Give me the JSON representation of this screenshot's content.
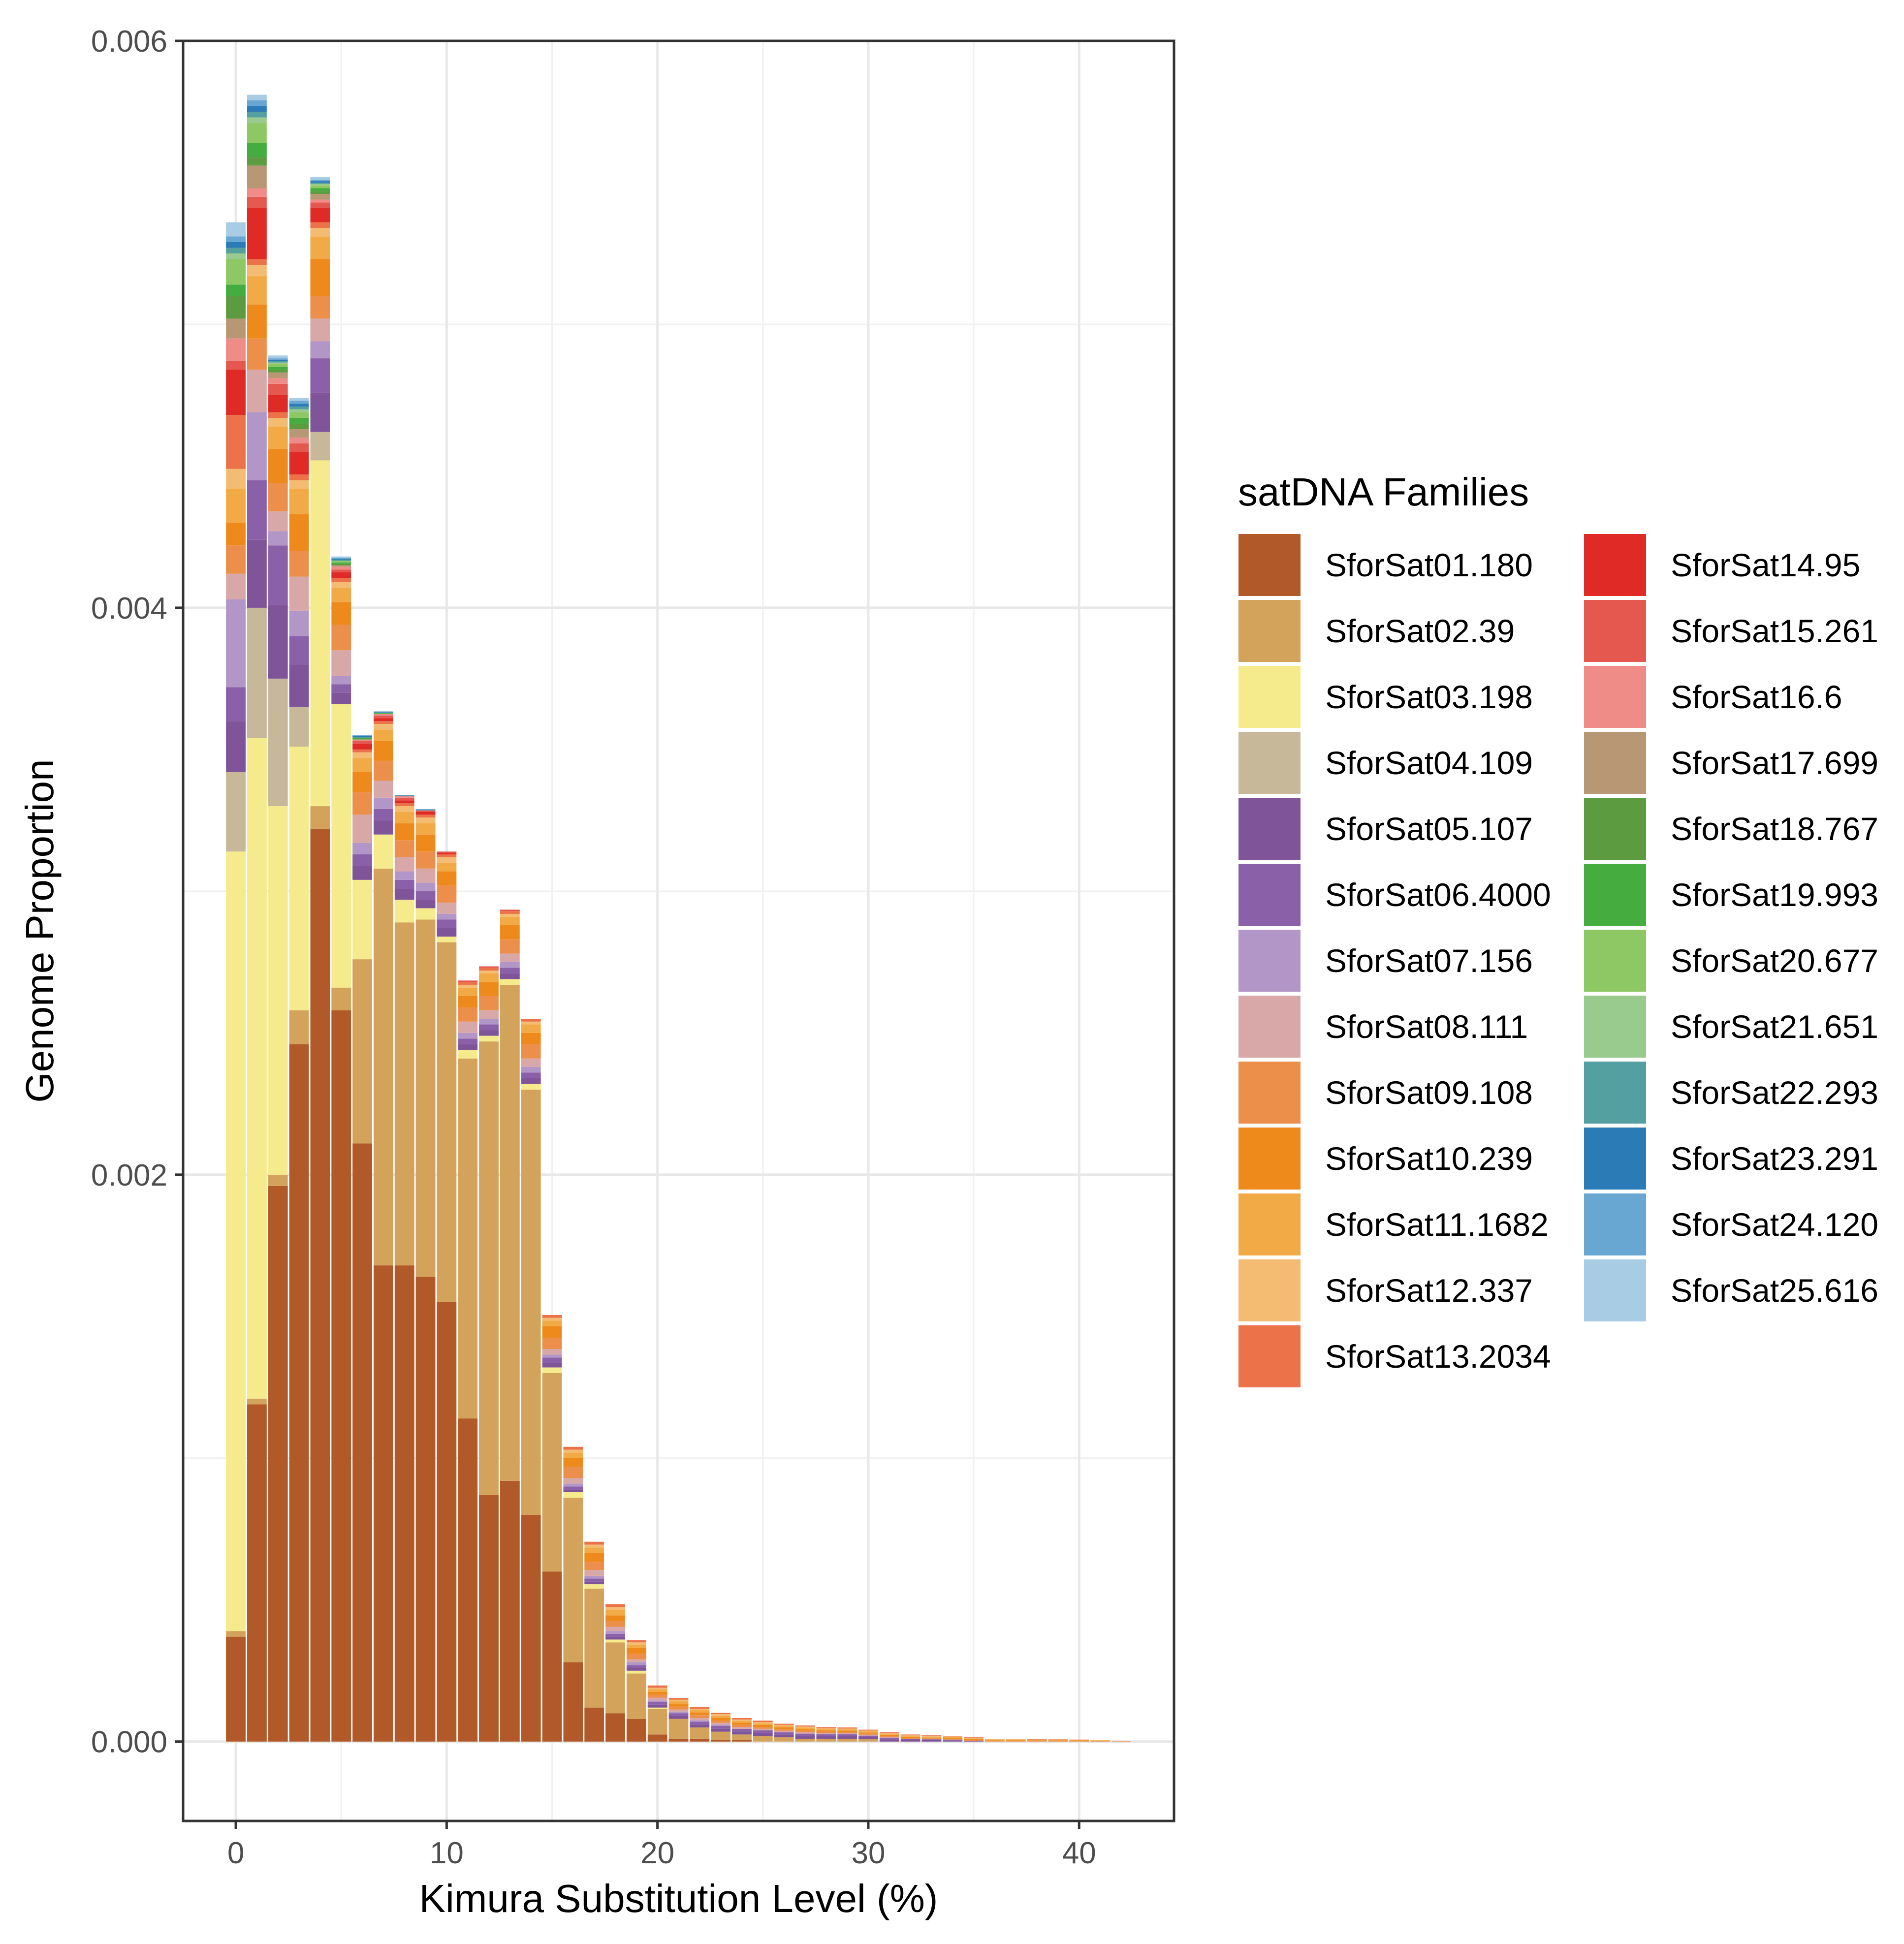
{
  "chart_data": {
    "type": "bar",
    "stacked": true,
    "title": "",
    "xlabel": "Kimura Substitution Level (%)",
    "ylabel": "Genome Proportion",
    "x_ticks": [
      "0",
      "10",
      "20",
      "30",
      "40"
    ],
    "y_ticks": [
      "0.000",
      "0.002",
      "0.004",
      "0.006"
    ],
    "xlim": [
      -2.5,
      44.5
    ],
    "ylim": [
      -0.00028,
      0.006
    ],
    "grid": true,
    "legend_title": "satDNA Families",
    "legend_position": "right",
    "x": [
      0,
      1,
      2,
      3,
      4,
      5,
      6,
      7,
      8,
      9,
      10,
      11,
      12,
      13,
      14,
      15,
      16,
      17,
      18,
      19,
      20,
      21,
      22,
      23,
      24,
      25,
      26,
      27,
      28,
      29,
      30,
      31,
      32,
      33,
      34,
      35,
      36,
      37,
      38,
      39,
      40,
      41,
      42
    ],
    "series": [
      {
        "name": "SforSat01.180",
        "color": "#b15928",
        "values": [
          0.00037,
          0.00119,
          0.00196,
          0.00246,
          0.00322,
          0.00258,
          0.00211,
          0.00168,
          0.00168,
          0.00164,
          0.00155,
          0.00114,
          0.00087,
          0.00092,
          0.0008,
          0.0006,
          0.00028,
          0.00012,
          0.0001,
          8e-05,
          2.5e-05,
          1e-05,
          1e-05,
          5e-06,
          5e-06,
          0,
          0,
          0,
          0,
          0,
          0,
          0,
          0,
          0,
          0,
          0,
          0,
          0,
          0,
          0,
          0,
          0,
          0
        ]
      },
      {
        "name": "SforSat02.39",
        "color": "#d4a35b",
        "values": [
          2e-05,
          2e-05,
          4e-05,
          0.00012,
          8e-05,
          8e-05,
          0.00065,
          0.0014,
          0.00121,
          0.00126,
          0.00127,
          0.00127,
          0.0016,
          0.00175,
          0.0015,
          0.0007,
          0.00058,
          0.00042,
          0.00025,
          0.00016,
          9e-05,
          7e-05,
          4e-05,
          3e-05,
          2e-05,
          2e-05,
          1.5e-05,
          1e-05,
          1e-05,
          1e-05,
          8e-06,
          0,
          0,
          0,
          0,
          0,
          0,
          0,
          0,
          0,
          0,
          0,
          0
        ]
      },
      {
        "name": "SforSat03.198",
        "color": "#f5eb8c",
        "values": [
          0.00275,
          0.00233,
          0.0013,
          0.00093,
          0.00122,
          0.001,
          0.00028,
          0.00012,
          8e-05,
          4e-05,
          2e-05,
          3e-05,
          2e-05,
          2e-05,
          2e-05,
          2e-05,
          2e-05,
          1.5e-05,
          1e-05,
          1e-05,
          5e-06,
          0,
          0,
          0,
          0,
          0,
          0,
          0,
          0,
          0,
          0,
          0,
          0,
          0,
          0,
          0,
          0,
          0,
          0,
          0,
          0,
          0,
          0
        ]
      },
      {
        "name": "SforSat04.109",
        "color": "#c8b89a",
        "values": [
          0.00028,
          0.00046,
          0.00045,
          0.00014,
          0.0001,
          0,
          0,
          0,
          0,
          0,
          0,
          0,
          0,
          0,
          0,
          0,
          0,
          0,
          0,
          0,
          0,
          0,
          0,
          0,
          0,
          0,
          0,
          0,
          0,
          0,
          0,
          0,
          0,
          0,
          0,
          0,
          0,
          0,
          0,
          0,
          0,
          0,
          0
        ]
      },
      {
        "name": "SforSat05.107",
        "color": "#7f5499",
        "values": [
          0.00018,
          0.00024,
          0.00026,
          0.00015,
          0.00014,
          4e-05,
          5e-05,
          5e-05,
          4e-05,
          3e-05,
          3e-05,
          2e-05,
          2e-05,
          2e-05,
          2e-05,
          1.5e-05,
          1e-05,
          1e-05,
          1e-05,
          1e-05,
          1e-05,
          1e-05,
          1e-05,
          1e-05,
          1e-05,
          1e-05,
          1e-05,
          1e-05,
          1e-05,
          1e-05,
          8e-06,
          8e-06,
          6e-06,
          5e-06,
          4e-06,
          3e-06,
          0,
          0,
          0,
          0,
          0,
          0,
          0
        ]
      },
      {
        "name": "SforSat06.4000",
        "color": "#8a60a8",
        "values": [
          0.00012,
          0.00021,
          0.00021,
          0.0001,
          0.00012,
          3e-05,
          4e-05,
          4e-05,
          3e-05,
          3e-05,
          3e-05,
          2e-05,
          2e-05,
          2e-05,
          2e-05,
          2e-05,
          1e-05,
          1e-05,
          1e-05,
          1e-05,
          1e-05,
          1e-05,
          1e-05,
          1e-05,
          1e-05,
          1e-05,
          8e-06,
          8e-06,
          6e-06,
          6e-06,
          5e-06,
          5e-06,
          4e-06,
          3e-06,
          3e-06,
          0,
          0,
          0,
          0,
          0,
          0,
          0,
          0
        ]
      },
      {
        "name": "SforSat07.156",
        "color": "#b296c7",
        "values": [
          0.00031,
          0.00024,
          5e-05,
          9e-05,
          6e-05,
          3e-05,
          4e-05,
          4e-05,
          3e-05,
          3e-05,
          2e-05,
          2e-05,
          2e-05,
          2e-05,
          2e-05,
          1e-05,
          1e-05,
          1e-05,
          1e-05,
          1e-05,
          5e-06,
          5e-06,
          5e-06,
          5e-06,
          0,
          0,
          0,
          0,
          0,
          0,
          0,
          0,
          0,
          0,
          0,
          0,
          0,
          0,
          0,
          0,
          0,
          0,
          0
        ]
      },
      {
        "name": "SforSat08.111",
        "color": "#d8a8a8",
        "values": [
          9e-05,
          0.00015,
          7e-05,
          0.00012,
          8e-05,
          9e-05,
          0.0001,
          6e-05,
          5e-05,
          5e-05,
          4e-05,
          4e-05,
          3e-05,
          3e-05,
          3e-05,
          2e-05,
          2e-05,
          2e-05,
          1.5e-05,
          1e-05,
          1e-05,
          8e-06,
          8e-06,
          6e-06,
          6e-06,
          5e-06,
          5e-06,
          5e-06,
          4e-06,
          4e-06,
          3e-06,
          3e-06,
          0,
          0,
          0,
          0,
          0,
          0,
          0,
          0,
          0,
          0,
          0
        ]
      },
      {
        "name": "SforSat09.108",
        "color": "#eb8f4b",
        "values": [
          0.0001,
          0.00011,
          0.0001,
          9e-05,
          8e-05,
          9e-05,
          8e-05,
          7e-05,
          6e-05,
          6e-05,
          6e-05,
          5e-05,
          5e-05,
          5e-05,
          5e-05,
          4e-05,
          4e-05,
          3e-05,
          2e-05,
          2e-05,
          1e-05,
          1e-05,
          1e-05,
          8e-06,
          8e-06,
          6e-06,
          6e-06,
          5e-06,
          5e-06,
          4e-06,
          4e-06,
          4e-06,
          3e-06,
          3e-06,
          3e-06,
          3e-06,
          2e-06,
          2e-06,
          2e-06,
          2e-06,
          2e-06,
          2e-06,
          1e-06
        ]
      },
      {
        "name": "SforSat10.239",
        "color": "#ee8a1c",
        "values": [
          8e-05,
          0.00012,
          0.00012,
          0.00013,
          0.00013,
          8e-05,
          7e-05,
          7e-05,
          6e-05,
          6e-05,
          5e-05,
          4e-05,
          5e-05,
          5e-05,
          4e-05,
          4e-05,
          3e-05,
          3e-05,
          2e-05,
          2e-05,
          1e-05,
          1e-05,
          1e-05,
          1e-05,
          8e-06,
          8e-06,
          6e-06,
          6e-06,
          5e-06,
          5e-06,
          4e-06,
          4e-06,
          4e-06,
          3e-06,
          3e-06,
          3e-06,
          2e-06,
          2e-06,
          2e-06,
          2e-06,
          2e-06,
          1e-06,
          1e-06
        ]
      },
      {
        "name": "SforSat11.1682",
        "color": "#f2aa46",
        "values": [
          0.00012,
          0.0001,
          8e-05,
          9e-05,
          8e-05,
          5e-05,
          5e-05,
          4e-05,
          4e-05,
          4e-05,
          3e-05,
          3e-05,
          3e-05,
          3e-05,
          3e-05,
          2e-05,
          2e-05,
          2e-05,
          2e-05,
          1e-05,
          1e-05,
          1e-05,
          8e-06,
          8e-06,
          6e-06,
          6e-06,
          5e-06,
          5e-06,
          4e-06,
          4e-06,
          4e-06,
          3e-06,
          3e-06,
          3e-06,
          3e-06,
          2e-06,
          2e-06,
          2e-06,
          2e-06,
          2e-06,
          1e-06,
          1e-06,
          1e-06
        ]
      },
      {
        "name": "SforSat12.337",
        "color": "#f4bc72",
        "values": [
          7e-05,
          4e-05,
          3e-05,
          3e-05,
          3e-05,
          2e-05,
          2e-05,
          2e-05,
          2e-05,
          2e-05,
          2e-05,
          1e-05,
          1e-05,
          1e-05,
          1e-05,
          1e-05,
          1e-05,
          1e-05,
          1e-05,
          1e-05,
          5e-06,
          5e-06,
          5e-06,
          5e-06,
          5e-06,
          4e-06,
          4e-06,
          4e-06,
          3e-06,
          3e-06,
          3e-06,
          3e-06,
          2e-06,
          2e-06,
          2e-06,
          2e-06,
          2e-06,
          2e-06,
          1e-06,
          1e-06,
          1e-06,
          1e-06,
          0
        ]
      },
      {
        "name": "SforSat13.2034",
        "color": "#eb7249",
        "values": [
          0.00019,
          2e-05,
          2e-05,
          2e-05,
          2e-05,
          1.5e-05,
          1e-05,
          1e-05,
          1e-05,
          1e-05,
          1e-05,
          1e-05,
          1e-05,
          1e-05,
          1e-05,
          1e-05,
          1e-05,
          1e-05,
          1e-05,
          8e-06,
          8e-06,
          6e-06,
          6e-06,
          5e-06,
          5e-06,
          5e-06,
          4e-06,
          4e-06,
          4e-06,
          4e-06,
          3e-06,
          3e-06,
          3e-06,
          3e-06,
          2e-06,
          2e-06,
          2e-06,
          2e-06,
          2e-06,
          1e-06,
          1e-06,
          1e-06,
          0
        ]
      },
      {
        "name": "SforSat14.95",
        "color": "#e02a26",
        "values": [
          0.00016,
          0.00018,
          6e-05,
          8e-05,
          5e-05,
          2e-05,
          2e-05,
          1e-05,
          1e-05,
          1e-05,
          5e-06,
          0,
          0,
          0,
          0,
          0,
          0,
          0,
          0,
          0,
          0,
          0,
          0,
          0,
          0,
          0,
          0,
          0,
          0,
          0,
          0,
          0,
          0,
          0,
          0,
          0,
          0,
          0,
          0,
          0,
          0,
          0,
          0
        ]
      },
      {
        "name": "SforSat15.261",
        "color": "#e45850",
        "values": [
          3e-05,
          4e-05,
          4e-05,
          3e-05,
          2e-05,
          1e-05,
          1e-05,
          1e-05,
          1e-05,
          5e-06,
          5e-06,
          5e-06,
          5e-06,
          5e-06,
          0,
          0,
          0,
          0,
          0,
          0,
          0,
          0,
          0,
          0,
          0,
          0,
          0,
          0,
          0,
          0,
          0,
          0,
          0,
          0,
          0,
          0,
          0,
          0,
          0,
          0,
          0,
          0,
          0
        ]
      },
      {
        "name": "SforSat16.6",
        "color": "#f08c88",
        "values": [
          8e-05,
          3e-05,
          2e-05,
          2e-05,
          1e-05,
          1e-05,
          5e-06,
          5e-06,
          5e-06,
          0,
          0,
          0,
          0,
          0,
          0,
          0,
          0,
          0,
          0,
          0,
          0,
          0,
          0,
          0,
          0,
          0,
          0,
          0,
          0,
          0,
          0,
          0,
          0,
          0,
          0,
          0,
          0,
          0,
          0,
          0,
          0,
          0,
          0
        ]
      },
      {
        "name": "SforSat17.699",
        "color": "#b89775",
        "values": [
          7e-05,
          8e-05,
          2e-05,
          3e-05,
          2e-05,
          5e-06,
          0,
          0,
          0,
          0,
          0,
          0,
          0,
          0,
          0,
          0,
          0,
          0,
          0,
          0,
          0,
          0,
          0,
          0,
          0,
          0,
          0,
          0,
          0,
          0,
          0,
          0,
          0,
          0,
          0,
          0,
          0,
          0,
          0,
          0,
          0,
          0,
          0
        ]
      },
      {
        "name": "SforSat18.767",
        "color": "#5c9b40",
        "values": [
          8e-05,
          3e-05,
          1e-05,
          2e-05,
          1e-05,
          5e-06,
          3e-06,
          0,
          0,
          0,
          0,
          0,
          0,
          0,
          0,
          0,
          0,
          0,
          0,
          0,
          0,
          0,
          0,
          0,
          0,
          0,
          0,
          0,
          0,
          0,
          0,
          0,
          0,
          0,
          0,
          0,
          0,
          0,
          0,
          0,
          0,
          0,
          0
        ]
      },
      {
        "name": "SforSat19.993",
        "color": "#45ac40",
        "values": [
          4e-05,
          5e-05,
          1e-05,
          2e-05,
          1e-05,
          5e-06,
          3e-06,
          3e-06,
          0,
          0,
          0,
          0,
          0,
          0,
          0,
          0,
          0,
          0,
          0,
          0,
          0,
          0,
          0,
          0,
          0,
          0,
          0,
          0,
          0,
          0,
          0,
          0,
          0,
          0,
          0,
          0,
          0,
          0,
          0,
          0,
          0,
          0,
          0
        ]
      },
      {
        "name": "SforSat20.677",
        "color": "#8ec864",
        "values": [
          9e-05,
          7e-05,
          1e-05,
          2e-05,
          1e-05,
          5e-06,
          0,
          0,
          0,
          0,
          0,
          0,
          0,
          0,
          0,
          0,
          0,
          0,
          0,
          0,
          0,
          0,
          0,
          0,
          0,
          0,
          0,
          0,
          0,
          0,
          0,
          0,
          0,
          0,
          0,
          0,
          0,
          0,
          0,
          0,
          0,
          0,
          0
        ]
      },
      {
        "name": "SforSat21.651",
        "color": "#9acb8e",
        "values": [
          2e-05,
          2e-05,
          5e-06,
          1e-05,
          5e-06,
          0,
          0,
          0,
          0,
          0,
          0,
          0,
          0,
          0,
          0,
          0,
          0,
          0,
          0,
          0,
          0,
          0,
          0,
          0,
          0,
          0,
          0,
          0,
          0,
          0,
          0,
          0,
          0,
          0,
          0,
          0,
          0,
          0,
          0,
          0,
          0,
          0,
          0
        ]
      },
      {
        "name": "SforSat22.293",
        "color": "#54a0a0",
        "values": [
          2e-05,
          2e-05,
          5e-06,
          1e-05,
          5e-06,
          5e-06,
          3e-06,
          3e-06,
          3e-06,
          2e-06,
          0,
          0,
          0,
          0,
          0,
          0,
          0,
          0,
          0,
          0,
          0,
          0,
          0,
          0,
          0,
          0,
          0,
          0,
          0,
          0,
          0,
          0,
          0,
          0,
          0,
          0,
          0,
          0,
          0,
          0,
          0,
          0,
          0
        ]
      },
      {
        "name": "SforSat23.291",
        "color": "#2a7bb6",
        "values": [
          2e-05,
          2e-05,
          5e-06,
          1e-05,
          5e-06,
          3e-06,
          3e-06,
          3e-06,
          2e-06,
          2e-06,
          0,
          0,
          0,
          0,
          0,
          0,
          0,
          0,
          0,
          0,
          0,
          0,
          0,
          0,
          0,
          0,
          0,
          0,
          0,
          0,
          0,
          0,
          0,
          0,
          0,
          0,
          0,
          0,
          0,
          0,
          0,
          0,
          0
        ]
      },
      {
        "name": "SforSat24.120",
        "color": "#68a7d2",
        "values": [
          2e-05,
          2e-05,
          5e-06,
          1e-05,
          5e-06,
          3e-06,
          3e-06,
          0,
          0,
          0,
          0,
          0,
          0,
          0,
          0,
          0,
          0,
          0,
          0,
          0,
          0,
          0,
          0,
          0,
          0,
          0,
          0,
          0,
          0,
          0,
          0,
          0,
          0,
          0,
          0,
          0,
          0,
          0,
          0,
          0,
          0,
          0,
          0
        ]
      },
      {
        "name": "SforSat25.616",
        "color": "#a8cce4",
        "values": [
          5e-05,
          2e-05,
          1e-05,
          1e-05,
          1e-05,
          5e-06,
          0,
          0,
          0,
          0,
          0,
          0,
          0,
          0,
          0,
          0,
          0,
          0,
          0,
          0,
          0,
          0,
          0,
          0,
          0,
          0,
          0,
          0,
          0,
          0,
          0,
          0,
          0,
          0,
          0,
          0,
          0,
          0,
          0,
          0,
          0,
          0,
          0
        ]
      }
    ]
  }
}
